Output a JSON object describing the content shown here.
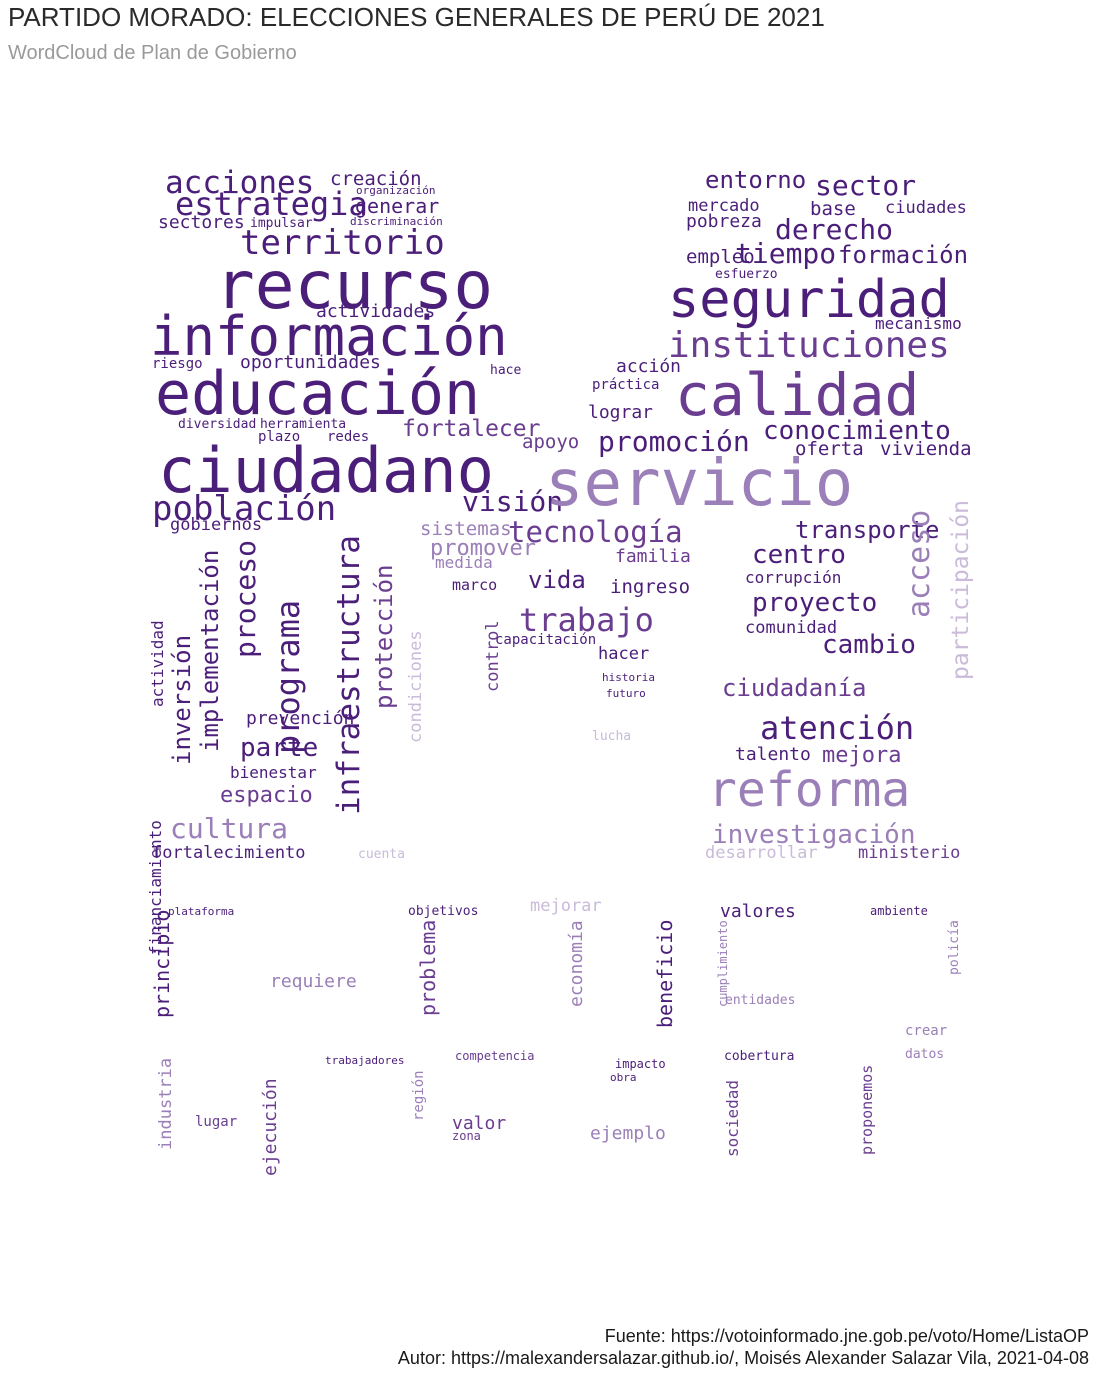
{
  "title": "PARTIDO MORADO: ELECCIONES GENERALES DE PERÚ DE 2021",
  "subtitle": "WordCloud de Plan de Gobierno",
  "caption_source": "Fuente: https://votoinformado.jne.gob.pe/voto/Home/ListaOP",
  "caption_author": "Autor: https://malexandersalazar.github.io/, Moisés Alexander Salazar Vila, 2021-04-08",
  "colors": {
    "dark": "#4b1e7a",
    "mid": "#6a3d91",
    "light": "#9b7fb8",
    "pale": "#c9bbd9"
  },
  "words": [
    {
      "t": "acciones",
      "c": "dark"
    },
    {
      "t": "creación",
      "c": "dark"
    },
    {
      "t": "organización",
      "c": "dark"
    },
    {
      "t": "estrategia",
      "c": "dark"
    },
    {
      "t": "generar",
      "c": "dark"
    },
    {
      "t": "sectores",
      "c": "dark"
    },
    {
      "t": "impulsar",
      "c": "dark"
    },
    {
      "t": "discriminación",
      "c": "dark"
    },
    {
      "t": "territorio",
      "c": "dark"
    },
    {
      "t": "recurso",
      "c": "dark"
    },
    {
      "t": "información",
      "c": "dark"
    },
    {
      "t": "actividades",
      "c": "dark"
    },
    {
      "t": "oportunidades",
      "c": "dark"
    },
    {
      "t": "educación",
      "c": "dark"
    },
    {
      "t": "riesgo",
      "c": "dark"
    },
    {
      "t": "diversidad",
      "c": "dark"
    },
    {
      "t": "herramienta",
      "c": "dark"
    },
    {
      "t": "plazo",
      "c": "dark"
    },
    {
      "t": "redes",
      "c": "dark"
    },
    {
      "t": "ciudadano",
      "c": "dark"
    },
    {
      "t": "población",
      "c": "dark"
    },
    {
      "t": "visión",
      "c": "dark"
    },
    {
      "t": "gobiernos",
      "c": "dark"
    },
    {
      "t": "hace",
      "c": "dark"
    },
    {
      "t": "fortalecer",
      "c": "mid"
    },
    {
      "t": "entorno",
      "c": "dark"
    },
    {
      "t": "sector",
      "c": "dark"
    },
    {
      "t": "mercado",
      "c": "dark"
    },
    {
      "t": "base",
      "c": "dark"
    },
    {
      "t": "ciudades",
      "c": "dark"
    },
    {
      "t": "pobreza",
      "c": "dark"
    },
    {
      "t": "derecho",
      "c": "dark"
    },
    {
      "t": "empleo",
      "c": "dark"
    },
    {
      "t": "tiempo",
      "c": "dark"
    },
    {
      "t": "formación",
      "c": "dark"
    },
    {
      "t": "esfuerzo",
      "c": "dark"
    },
    {
      "t": "seguridad",
      "c": "dark"
    },
    {
      "t": "mecanismo",
      "c": "dark"
    },
    {
      "t": "instituciones",
      "c": "mid"
    },
    {
      "t": "acción",
      "c": "dark"
    },
    {
      "t": "práctica",
      "c": "dark"
    },
    {
      "t": "calidad",
      "c": "mid"
    },
    {
      "t": "lograr",
      "c": "dark"
    },
    {
      "t": "conocimiento",
      "c": "dark"
    },
    {
      "t": "promoción",
      "c": "dark"
    },
    {
      "t": "oferta",
      "c": "dark"
    },
    {
      "t": "vivienda",
      "c": "dark"
    },
    {
      "t": "apoyo",
      "c": "mid"
    },
    {
      "t": "servicio",
      "c": "light"
    },
    {
      "t": "tecnología",
      "c": "mid"
    },
    {
      "t": "transporte",
      "c": "dark"
    },
    {
      "t": "sistemas",
      "c": "light"
    },
    {
      "t": "promover",
      "c": "light"
    },
    {
      "t": "medida",
      "c": "light"
    },
    {
      "t": "familia",
      "c": "mid"
    },
    {
      "t": "centro",
      "c": "dark"
    },
    {
      "t": "vida",
      "c": "dark"
    },
    {
      "t": "ingreso",
      "c": "dark"
    },
    {
      "t": "marco",
      "c": "dark"
    },
    {
      "t": "corrupción",
      "c": "dark"
    },
    {
      "t": "trabajo",
      "c": "mid"
    },
    {
      "t": "proyecto",
      "c": "dark"
    },
    {
      "t": "comunidad",
      "c": "dark"
    },
    {
      "t": "acceso",
      "c": "light"
    },
    {
      "t": "cambio",
      "c": "dark"
    },
    {
      "t": "capacitación",
      "c": "dark"
    },
    {
      "t": "hacer",
      "c": "dark"
    },
    {
      "t": "ciudadanía",
      "c": "mid"
    },
    {
      "t": "participación",
      "c": "pale"
    },
    {
      "t": "atención",
      "c": "dark"
    },
    {
      "t": "mejora",
      "c": "mid"
    },
    {
      "t": "talento",
      "c": "dark"
    },
    {
      "t": "reforma",
      "c": "light"
    },
    {
      "t": "investigación",
      "c": "light"
    },
    {
      "t": "ministerio",
      "c": "mid"
    },
    {
      "t": "desarrollar",
      "c": "pale"
    },
    {
      "t": "lucha",
      "c": "pale"
    },
    {
      "t": "historia",
      "c": "dark"
    },
    {
      "t": "futuro",
      "c": "dark"
    },
    {
      "t": "financiamiento",
      "c": "dark"
    },
    {
      "t": "actividad",
      "c": "dark"
    },
    {
      "t": "inversión",
      "c": "dark"
    },
    {
      "t": "implementación",
      "c": "dark"
    },
    {
      "t": "proceso",
      "c": "dark"
    },
    {
      "t": "programa",
      "c": "dark"
    },
    {
      "t": "infraestructura",
      "c": "dark"
    },
    {
      "t": "protección",
      "c": "mid"
    },
    {
      "t": "prevención",
      "c": "dark"
    },
    {
      "t": "parte",
      "c": "dark"
    },
    {
      "t": "bienestar",
      "c": "dark"
    },
    {
      "t": "espacio",
      "c": "mid"
    },
    {
      "t": "cultura",
      "c": "light"
    },
    {
      "t": "fortalecimiento",
      "c": "dark"
    },
    {
      "t": "cuenta",
      "c": "pale"
    },
    {
      "t": "condiciones",
      "c": "pale"
    },
    {
      "t": "control",
      "c": "mid"
    },
    {
      "t": "plataforma",
      "c": "dark"
    },
    {
      "t": "principio",
      "c": "dark"
    },
    {
      "t": "requiere",
      "c": "light"
    },
    {
      "t": "objetivos",
      "c": "dark"
    },
    {
      "t": "mejorar",
      "c": "pale"
    },
    {
      "t": "problema",
      "c": "mid"
    },
    {
      "t": "economía",
      "c": "light"
    },
    {
      "t": "beneficio",
      "c": "dark"
    },
    {
      "t": "valores",
      "c": "dark"
    },
    {
      "t": "ambiente",
      "c": "dark"
    },
    {
      "t": "entidades",
      "c": "light"
    },
    {
      "t": "cumplimiento",
      "c": "light"
    },
    {
      "t": "crear",
      "c": "light"
    },
    {
      "t": "policía",
      "c": "light"
    },
    {
      "t": "industria",
      "c": "light"
    },
    {
      "t": "ejecución",
      "c": "mid"
    },
    {
      "t": "trabajadores",
      "c": "dark"
    },
    {
      "t": "competencia",
      "c": "mid"
    },
    {
      "t": "lugar",
      "c": "mid"
    },
    {
      "t": "valor",
      "c": "mid"
    },
    {
      "t": "zona",
      "c": "mid"
    },
    {
      "t": "ejemplo",
      "c": "light"
    },
    {
      "t": "cobertura",
      "c": "dark"
    },
    {
      "t": "sociedad",
      "c": "mid"
    },
    {
      "t": "datos",
      "c": "light"
    },
    {
      "t": "proponemos",
      "c": "mid"
    },
    {
      "t": "región",
      "c": "light"
    },
    {
      "t": "impacto",
      "c": "dark"
    },
    {
      "t": "obra",
      "c": "dark"
    }
  ]
}
